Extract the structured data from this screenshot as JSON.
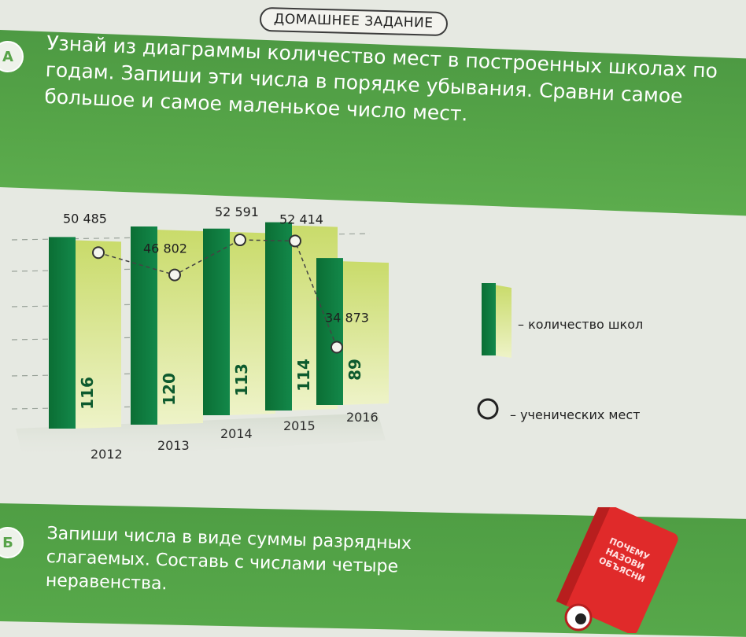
{
  "header": {
    "tag": "ДОМАШНЕЕ ЗАДАНИЕ"
  },
  "task_a": {
    "marker": "А",
    "text": "Узнай из диаграммы количество мест в построенных школах по годам. Запиши эти числа в порядке убывания. Сравни самое большое и самое маленькое число мест."
  },
  "task_b": {
    "marker": "Б",
    "text": "Запиши числа в виде суммы разрядных слагаемых. Составь с числами четыре неравенства."
  },
  "mascot": {
    "text": "ПОЧЕМУ НАЗОВИ ОБЪЯСНИ"
  },
  "colors": {
    "bar_dark": "#0f7a3d",
    "bar_light_top": "#c9db6a",
    "bar_light_bottom": "#e9f0b9",
    "banner": "#56a548"
  },
  "chart_data": {
    "type": "bar",
    "categories": [
      "2012",
      "2013",
      "2014",
      "2015",
      "2016"
    ],
    "series": [
      {
        "name": "количество школ",
        "values": [
          116,
          120,
          113,
          114,
          89
        ]
      },
      {
        "name": "ученических мест",
        "values": [
          50485,
          46802,
          52591,
          52414,
          34873
        ]
      }
    ],
    "bar_labels": [
      "116",
      "120",
      "113",
      "114",
      "89"
    ],
    "point_labels": [
      "50 485",
      "46 802",
      "52 591",
      "52 414",
      "34 873"
    ],
    "legend": [
      {
        "marker": "bar",
        "label": "– количество школ"
      },
      {
        "marker": "circle",
        "label": "– ученических мест"
      }
    ],
    "legend_position": "right",
    "grid": true
  }
}
